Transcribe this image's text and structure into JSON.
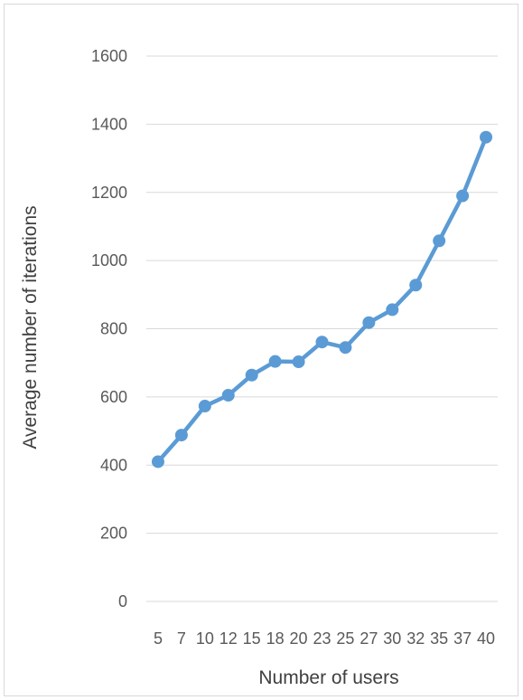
{
  "chart_data": {
    "type": "line",
    "title": "",
    "xlabel": "Number of users",
    "ylabel": "Average number of iterations",
    "categories": [
      "5",
      "7",
      "10",
      "12",
      "15",
      "18",
      "20",
      "23",
      "25",
      "27",
      "30",
      "32",
      "35",
      "37",
      "40"
    ],
    "series": [
      {
        "values": [
          410,
          488,
          573,
          605,
          664,
          704,
          703,
          761,
          745,
          818,
          856,
          928,
          1058,
          1190,
          1362
        ],
        "color": "#5b9bd5"
      }
    ],
    "ylim": [
      0,
      1600
    ],
    "yticks": [
      0,
      200,
      400,
      600,
      800,
      1000,
      1200,
      1400,
      1600
    ],
    "grid": true,
    "legend": "none"
  }
}
